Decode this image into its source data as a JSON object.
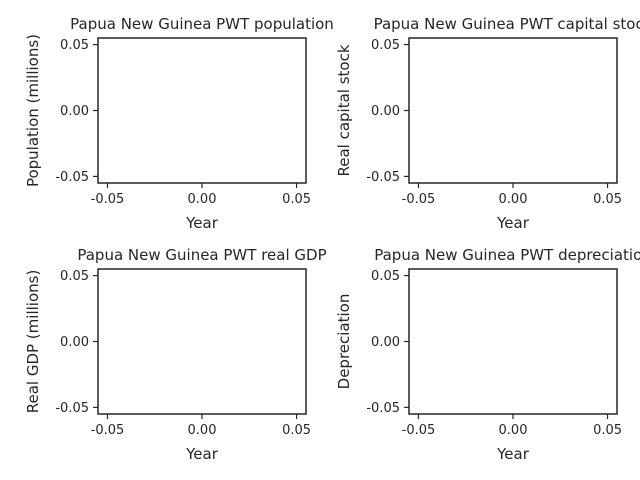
{
  "chart_data": [
    {
      "type": "line",
      "title": "Papua New Guinea PWT population",
      "xlabel": "Year",
      "ylabel": "Population (millions)",
      "xlim": [
        -0.055,
        0.055
      ],
      "ylim": [
        -0.055,
        0.055
      ],
      "xticks": [
        "-0.05",
        "0.00",
        "0.05"
      ],
      "yticks": [
        "-0.05",
        "0.00",
        "0.05"
      ],
      "series": [],
      "grid": false
    },
    {
      "type": "line",
      "title": "Papua New Guinea PWT capital stock",
      "xlabel": "Year",
      "ylabel": "Real capital stock",
      "xlim": [
        -0.055,
        0.055
      ],
      "ylim": [
        -0.055,
        0.055
      ],
      "xticks": [
        "-0.05",
        "0.00",
        "0.05"
      ],
      "yticks": [
        "-0.05",
        "0.00",
        "0.05"
      ],
      "series": [],
      "grid": false
    },
    {
      "type": "line",
      "title": "Papua New Guinea PWT real GDP",
      "xlabel": "Year",
      "ylabel": "Real GDP (millions)",
      "xlim": [
        -0.055,
        0.055
      ],
      "ylim": [
        -0.055,
        0.055
      ],
      "xticks": [
        "-0.05",
        "0.00",
        "0.05"
      ],
      "yticks": [
        "-0.05",
        "0.00",
        "0.05"
      ],
      "series": [],
      "grid": false
    },
    {
      "type": "line",
      "title": "Papua New Guinea PWT depreciation",
      "xlabel": "Year",
      "ylabel": "Depreciation",
      "xlim": [
        -0.055,
        0.055
      ],
      "ylim": [
        -0.055,
        0.055
      ],
      "xticks": [
        "-0.05",
        "0.00",
        "0.05"
      ],
      "yticks": [
        "-0.05",
        "0.00",
        "0.05"
      ],
      "series": [],
      "grid": false
    }
  ]
}
